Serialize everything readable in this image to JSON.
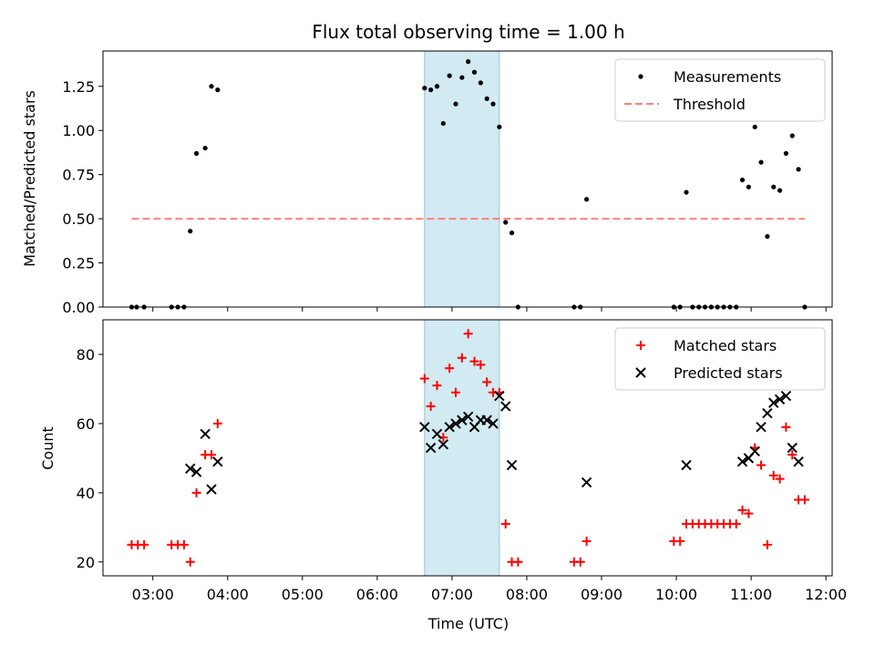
{
  "chart_data": [
    {
      "type": "scatter",
      "title": "Flux total observing time = 1.00 h",
      "xlabel": "",
      "ylabel": "Matched/Predicted stars",
      "ylim": [
        0,
        1.45
      ],
      "xlim": [
        "02:20",
        "12:05"
      ],
      "yticks": [
        0.0,
        0.25,
        0.5,
        0.75,
        1.0,
        1.25
      ],
      "ytick_labels": [
        "0.00",
        "0.25",
        "0.50",
        "0.75",
        "1.00",
        "1.25"
      ],
      "xticks": [
        "03:00",
        "04:00",
        "05:00",
        "06:00",
        "07:00",
        "08:00",
        "09:00",
        "10:00",
        "11:00",
        "12:00"
      ],
      "highlight_span": [
        "06:38",
        "07:38"
      ],
      "legend_position": "top-right",
      "series": [
        {
          "name": "Measurements",
          "kind": "points",
          "color": "#000000",
          "points": [
            [
              "02:43",
              0.0
            ],
            [
              "02:47",
              0.0
            ],
            [
              "02:53",
              0.0
            ],
            [
              "03:15",
              0.0
            ],
            [
              "03:20",
              0.0
            ],
            [
              "03:25",
              0.0
            ],
            [
              "03:30",
              0.43
            ],
            [
              "03:35",
              0.87
            ],
            [
              "03:42",
              0.9
            ],
            [
              "03:47",
              1.25
            ],
            [
              "03:52",
              1.23
            ],
            [
              "06:38",
              1.24
            ],
            [
              "06:43",
              1.23
            ],
            [
              "06:48",
              1.25
            ],
            [
              "06:53",
              1.04
            ],
            [
              "06:58",
              1.31
            ],
            [
              "07:03",
              1.15
            ],
            [
              "07:08",
              1.3
            ],
            [
              "07:13",
              1.39
            ],
            [
              "07:18",
              1.33
            ],
            [
              "07:23",
              1.27
            ],
            [
              "07:28",
              1.18
            ],
            [
              "07:33",
              1.15
            ],
            [
              "07:38",
              1.02
            ],
            [
              "07:43",
              0.48
            ],
            [
              "07:48",
              0.42
            ],
            [
              "07:53",
              0.0
            ],
            [
              "08:38",
              0.0
            ],
            [
              "08:43",
              0.0
            ],
            [
              "08:48",
              0.61
            ],
            [
              "09:58",
              0.0
            ],
            [
              "10:03",
              0.0
            ],
            [
              "10:08",
              0.65
            ],
            [
              "10:13",
              0.0
            ],
            [
              "10:18",
              0.0
            ],
            [
              "10:23",
              0.0
            ],
            [
              "10:28",
              0.0
            ],
            [
              "10:33",
              0.0
            ],
            [
              "10:38",
              0.0
            ],
            [
              "10:43",
              0.0
            ],
            [
              "10:48",
              0.0
            ],
            [
              "10:53",
              0.72
            ],
            [
              "10:58",
              0.68
            ],
            [
              "11:03",
              1.02
            ],
            [
              "11:08",
              0.82
            ],
            [
              "11:13",
              0.4
            ],
            [
              "11:18",
              0.68
            ],
            [
              "11:23",
              0.66
            ],
            [
              "11:28",
              0.87
            ],
            [
              "11:33",
              0.97
            ],
            [
              "11:38",
              0.78
            ],
            [
              "11:43",
              0.0
            ]
          ]
        },
        {
          "name": "Threshold",
          "kind": "dashed-line",
          "color": "#ff7f7f",
          "points": [
            [
              "02:43",
              0.5
            ],
            [
              "11:43",
              0.5
            ]
          ]
        }
      ]
    },
    {
      "type": "scatter",
      "title": "",
      "xlabel": "Time (UTC)",
      "ylabel": "Count",
      "ylim": [
        16,
        90
      ],
      "xlim": [
        "02:20",
        "12:05"
      ],
      "yticks": [
        20,
        40,
        60,
        80
      ],
      "ytick_labels": [
        "20",
        "40",
        "60",
        "80"
      ],
      "xticks": [
        "03:00",
        "04:00",
        "05:00",
        "06:00",
        "07:00",
        "08:00",
        "09:00",
        "10:00",
        "11:00",
        "12:00"
      ],
      "xtick_labels": [
        "03:00",
        "04:00",
        "05:00",
        "06:00",
        "07:00",
        "08:00",
        "09:00",
        "10:00",
        "11:00",
        "12:00"
      ],
      "highlight_span": [
        "06:38",
        "07:38"
      ],
      "legend_position": "top-right",
      "series": [
        {
          "name": "Matched stars",
          "marker": "plus",
          "color": "#ff0000",
          "points": [
            [
              "02:43",
              25
            ],
            [
              "02:48",
              25
            ],
            [
              "02:53",
              25
            ],
            [
              "03:15",
              25
            ],
            [
              "03:20",
              25
            ],
            [
              "03:25",
              25
            ],
            [
              "03:30",
              20
            ],
            [
              "03:35",
              40
            ],
            [
              "03:42",
              51
            ],
            [
              "03:47",
              51
            ],
            [
              "03:52",
              60
            ],
            [
              "06:38",
              73
            ],
            [
              "06:43",
              65
            ],
            [
              "06:48",
              71
            ],
            [
              "06:53",
              56
            ],
            [
              "06:58",
              76
            ],
            [
              "07:03",
              69
            ],
            [
              "07:08",
              79
            ],
            [
              "07:13",
              86
            ],
            [
              "07:18",
              78
            ],
            [
              "07:23",
              77
            ],
            [
              "07:28",
              72
            ],
            [
              "07:33",
              69
            ],
            [
              "07:38",
              69
            ],
            [
              "07:43",
              31
            ],
            [
              "07:48",
              20
            ],
            [
              "07:53",
              20
            ],
            [
              "08:38",
              20
            ],
            [
              "08:43",
              20
            ],
            [
              "08:48",
              26
            ],
            [
              "09:58",
              26
            ],
            [
              "10:03",
              26
            ],
            [
              "10:08",
              31
            ],
            [
              "10:13",
              31
            ],
            [
              "10:18",
              31
            ],
            [
              "10:23",
              31
            ],
            [
              "10:28",
              31
            ],
            [
              "10:33",
              31
            ],
            [
              "10:38",
              31
            ],
            [
              "10:43",
              31
            ],
            [
              "10:48",
              31
            ],
            [
              "10:53",
              35
            ],
            [
              "10:58",
              34
            ],
            [
              "11:03",
              53
            ],
            [
              "11:08",
              48
            ],
            [
              "11:13",
              25
            ],
            [
              "11:18",
              45
            ],
            [
              "11:23",
              44
            ],
            [
              "11:28",
              59
            ],
            [
              "11:33",
              51
            ],
            [
              "11:38",
              38
            ],
            [
              "11:43",
              38
            ]
          ]
        },
        {
          "name": "Predicted stars",
          "marker": "x",
          "color": "#000000",
          "points": [
            [
              "03:30",
              47
            ],
            [
              "03:35",
              46
            ],
            [
              "03:42",
              57
            ],
            [
              "03:47",
              41
            ],
            [
              "03:52",
              49
            ],
            [
              "06:38",
              59
            ],
            [
              "06:43",
              53
            ],
            [
              "06:48",
              57
            ],
            [
              "06:53",
              54
            ],
            [
              "06:58",
              59
            ],
            [
              "07:03",
              60
            ],
            [
              "07:08",
              61
            ],
            [
              "07:13",
              62
            ],
            [
              "07:18",
              59
            ],
            [
              "07:23",
              61
            ],
            [
              "07:28",
              61
            ],
            [
              "07:33",
              60
            ],
            [
              "07:38",
              68
            ],
            [
              "07:43",
              65
            ],
            [
              "07:48",
              48
            ],
            [
              "08:48",
              43
            ],
            [
              "10:08",
              48
            ],
            [
              "10:53",
              49
            ],
            [
              "10:58",
              50
            ],
            [
              "11:03",
              52
            ],
            [
              "11:08",
              59
            ],
            [
              "11:13",
              63
            ],
            [
              "11:18",
              66
            ],
            [
              "11:23",
              67
            ],
            [
              "11:28",
              68
            ],
            [
              "11:33",
              53
            ],
            [
              "11:38",
              49
            ]
          ]
        }
      ]
    }
  ]
}
